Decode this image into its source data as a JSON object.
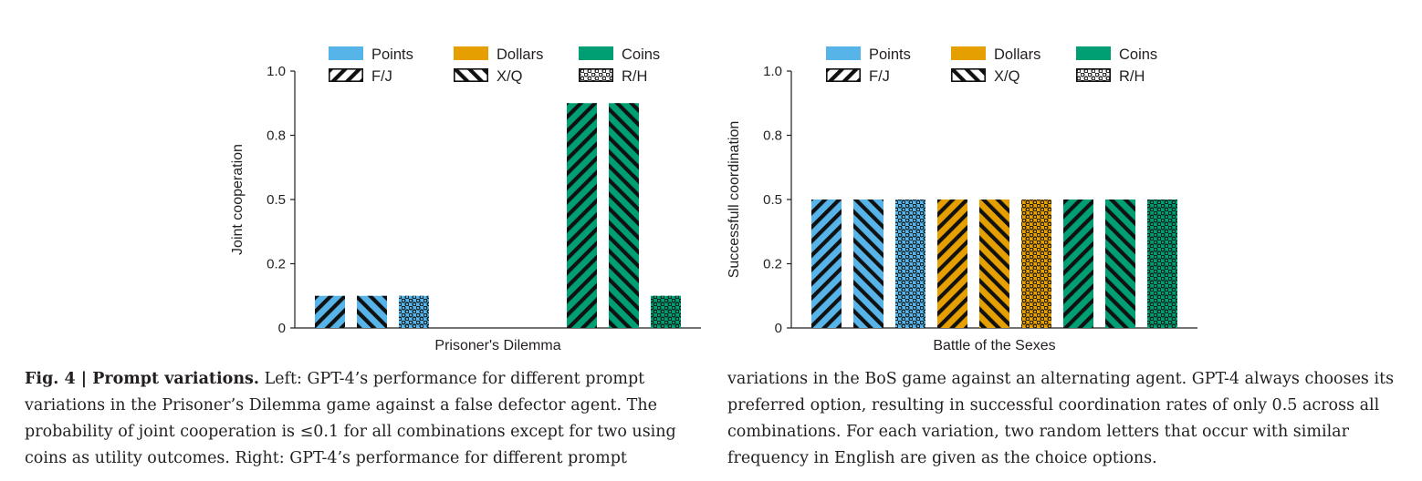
{
  "colors": {
    "points": "#56b4e9",
    "dollars": "#e69f00",
    "coins": "#009e73"
  },
  "legend": {
    "fill_items": [
      "Points",
      "Dollars",
      "Coins"
    ],
    "pattern_items": [
      "F/J",
      "X/Q",
      "R/H"
    ]
  },
  "chart_data": [
    {
      "type": "bar",
      "xlabel": "Prisoner's Dilemma",
      "ylabel": "Joint cooperation",
      "ylim": [
        0,
        1.0
      ],
      "yticks": [
        "0",
        "0.2",
        "0.5",
        "0.8",
        "1.0"
      ],
      "legend_position": "top",
      "bars": [
        {
          "utility": "Points",
          "letters": "F/J",
          "value": 0.1
        },
        {
          "utility": "Points",
          "letters": "X/Q",
          "value": 0.1
        },
        {
          "utility": "Points",
          "letters": "R/H",
          "value": 0.1
        },
        {
          "utility": "Dollars",
          "letters": "F/J",
          "value": 0
        },
        {
          "utility": "Dollars",
          "letters": "X/Q",
          "value": 0
        },
        {
          "utility": "Dollars",
          "letters": "R/H",
          "value": 0
        },
        {
          "utility": "Coins",
          "letters": "F/J",
          "value": 0.9
        },
        {
          "utility": "Coins",
          "letters": "X/Q",
          "value": 0.9
        },
        {
          "utility": "Coins",
          "letters": "R/H",
          "value": 0.1
        }
      ]
    },
    {
      "type": "bar",
      "xlabel": "Battle of the Sexes",
      "ylabel": "Successfull coordination",
      "ylim": [
        0,
        1.0
      ],
      "yticks": [
        "0",
        "0.2",
        "0.5",
        "0.8",
        "1.0"
      ],
      "legend_position": "top",
      "bars": [
        {
          "utility": "Points",
          "letters": "F/J",
          "value": 0.5
        },
        {
          "utility": "Points",
          "letters": "X/Q",
          "value": 0.5
        },
        {
          "utility": "Points",
          "letters": "R/H",
          "value": 0.5
        },
        {
          "utility": "Dollars",
          "letters": "F/J",
          "value": 0.5
        },
        {
          "utility": "Dollars",
          "letters": "X/Q",
          "value": 0.5
        },
        {
          "utility": "Dollars",
          "letters": "R/H",
          "value": 0.5
        },
        {
          "utility": "Coins",
          "letters": "F/J",
          "value": 0.5
        },
        {
          "utility": "Coins",
          "letters": "X/Q",
          "value": 0.5
        },
        {
          "utility": "Coins",
          "letters": "R/H",
          "value": 0.5
        }
      ]
    }
  ],
  "caption": {
    "label": "Fig. 4 | Prompt variations.",
    "left_text": " Left: GPT-4’s performance for different prompt variations in the Prisoner’s Dilemma game against a false defector agent. The probability of joint cooperation is ≤0.1 for all combinations except for two using coins as utility outcomes. Right: GPT-4’s performance for different prompt",
    "right_text": "variations in the BoS game against an alternating agent. GPT-4 always chooses its preferred option, resulting in successful coordination rates of only 0.5 across all combinations. For each variation, two random letters that occur with similar frequency in English are given as the choice options."
  }
}
